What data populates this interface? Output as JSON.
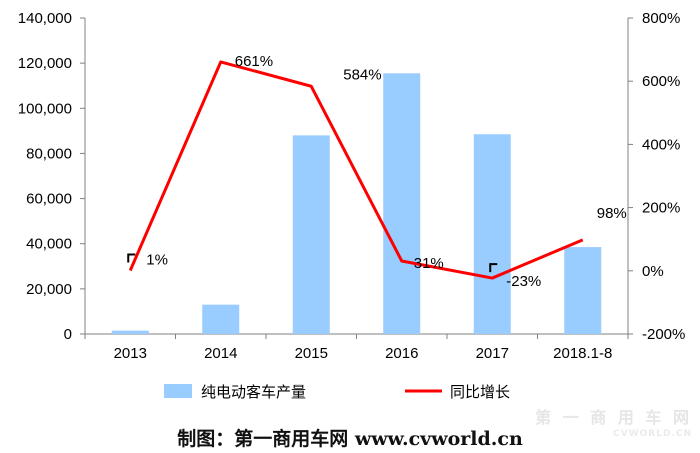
{
  "chart_data": {
    "type": "bar+line",
    "categories": [
      "2013",
      "2014",
      "2015",
      "2016",
      "2017",
      "2018.1-8"
    ],
    "series": [
      {
        "name": "纯电动客车产量",
        "type": "bar",
        "axis": "left",
        "color": "#99CCFF",
        "values": [
          1500,
          13000,
          88000,
          115500,
          88500,
          38500
        ]
      },
      {
        "name": "同比增长",
        "type": "line",
        "axis": "right",
        "color": "#FF0000",
        "values": [
          1,
          661,
          584,
          31,
          -23,
          98
        ],
        "labels": [
          "1%",
          "661%",
          "584%",
          "31%",
          "-23%",
          "98%"
        ]
      }
    ],
    "y_left": {
      "range": [
        0,
        140000
      ],
      "ticks": [
        0,
        20000,
        40000,
        60000,
        80000,
        100000,
        120000,
        140000
      ],
      "tick_labels": [
        "0",
        "20,000",
        "40,000",
        "60,000",
        "80,000",
        "100,000",
        "120,000",
        "140,000"
      ]
    },
    "y_right": {
      "range": [
        -200,
        800
      ],
      "ticks": [
        -200,
        0,
        200,
        400,
        600,
        800
      ],
      "tick_labels": [
        "-200%",
        "0%",
        "200%",
        "400%",
        "600%",
        "800%"
      ]
    },
    "legend_position": "bottom",
    "grid": false
  },
  "credit": "制图：第一商用车网 www.cvworld.cn",
  "watermark": {
    "text": "第 一 商 用 车 网",
    "sub": "CVWORLD.CN"
  }
}
